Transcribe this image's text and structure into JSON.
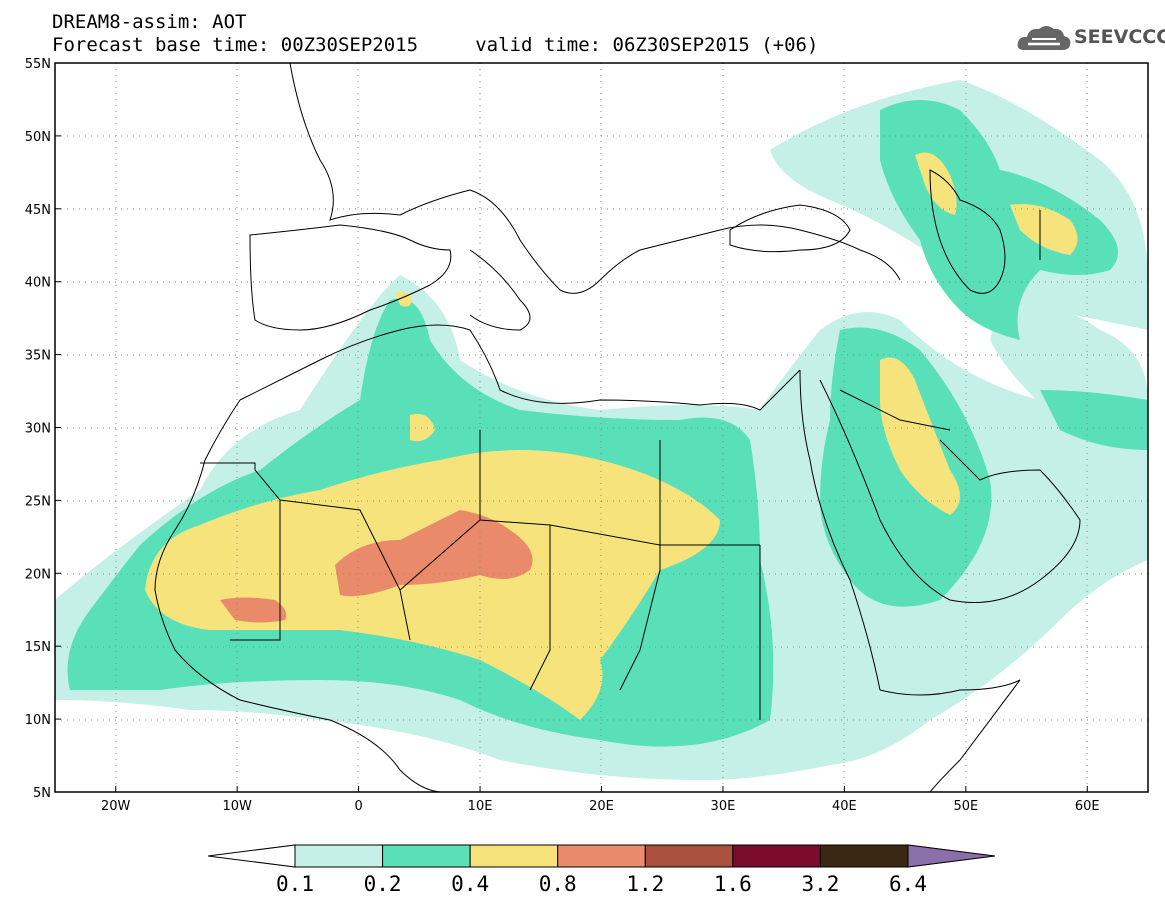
{
  "title_line1": "DREAM8-assim: AOT",
  "title_line2": "Forecast base time: 00Z30SEP2015     valid time: 06Z30SEP2015 (+06)",
  "logo": {
    "text": "SEEVCCC",
    "icon": "cloud-icon",
    "color": "#555555"
  },
  "map": {
    "lon_range": [
      -25,
      65
    ],
    "lat_range": [
      5,
      55
    ],
    "lat_labels": [
      "55N",
      "50N",
      "45N",
      "40N",
      "35N",
      "30N",
      "25N",
      "20N",
      "15N",
      "10N",
      "5N"
    ],
    "lon_labels": [
      "20W",
      "10W",
      "0",
      "10E",
      "20E",
      "30E",
      "40E",
      "50E",
      "60E"
    ],
    "grid": "dotted"
  },
  "colorbar": {
    "labels": [
      "0.1",
      "0.2",
      "0.4",
      "0.8",
      "1.2",
      "1.6",
      "3.2",
      "6.4"
    ],
    "colors": [
      "#ffffff",
      "#c4f0e8",
      "#5ae0b8",
      "#f6e37c",
      "#e98b6a",
      "#a9503f",
      "#7b0c2b",
      "#3a2714",
      "#8a6faa"
    ]
  }
}
